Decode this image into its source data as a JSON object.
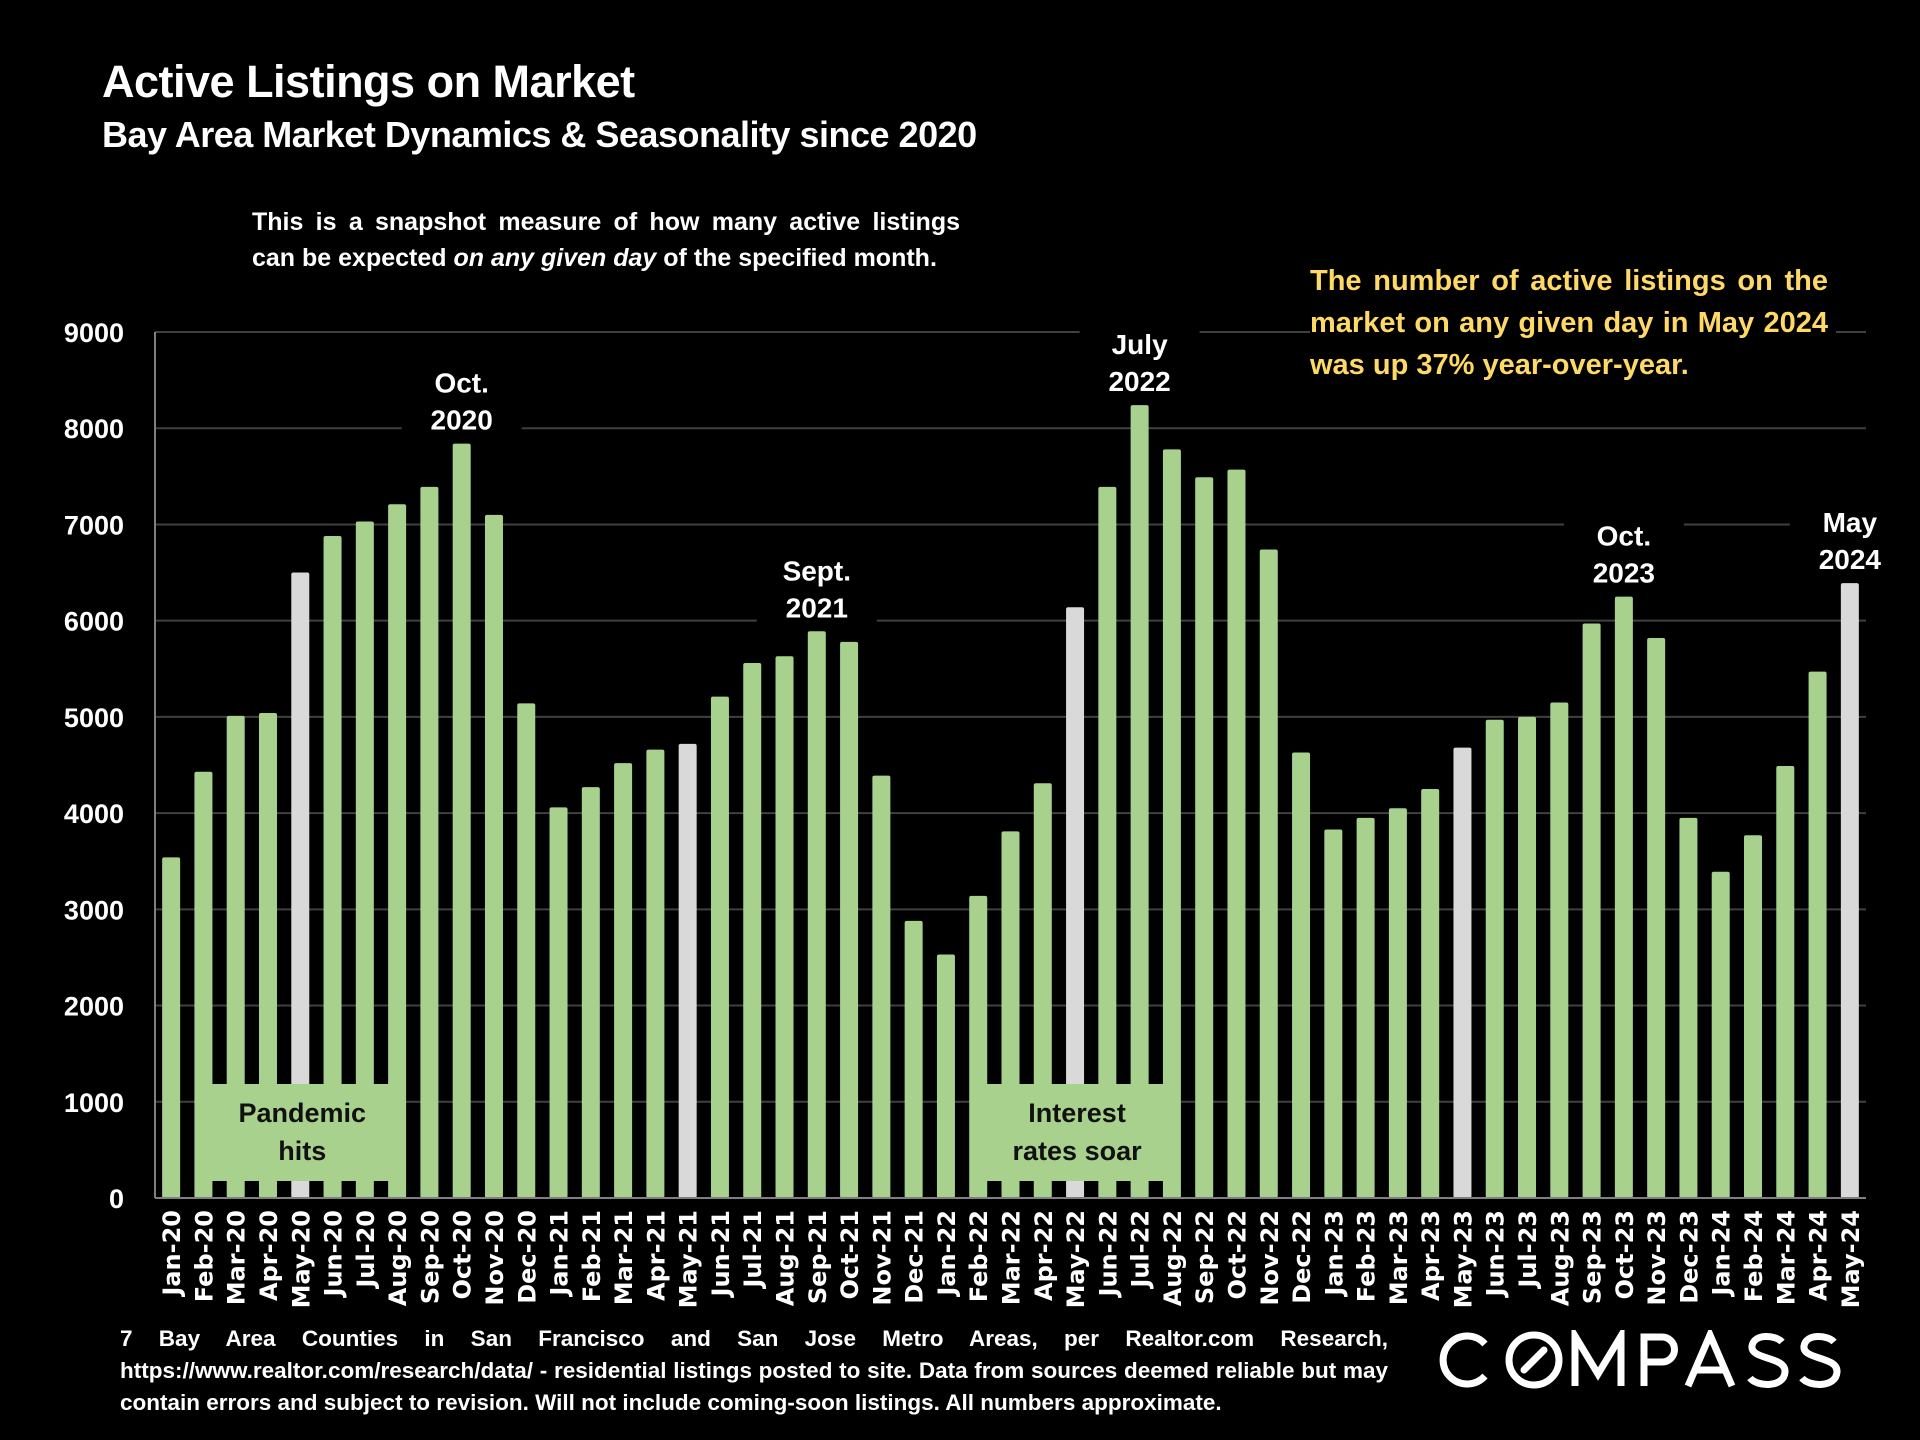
{
  "header": {
    "title": "Active Listings on Market",
    "subtitle": "Bay Area Market Dynamics & Seasonality since 2020"
  },
  "note": {
    "part1": "This is a snapshot measure of how many active listings can be expected ",
    "emphasis": "on any given day",
    "part2": " of the specified month."
  },
  "callout": {
    "text": "The number of active listings on the market on any given day in May 2024 was up 37% year-over-year.",
    "color": "#FFD966"
  },
  "colors": {
    "bar_default": "#A9D18E",
    "bar_highlight": "#D9D9D9",
    "gridline": "#404040",
    "background": "#000000"
  },
  "chart_data": {
    "type": "bar",
    "title": "Active Listings on Market",
    "subtitle": "Bay Area Market Dynamics & Seasonality since 2020",
    "xlabel": "",
    "ylabel": "",
    "ylim": [
      0,
      9000
    ],
    "yticks": [
      0,
      1000,
      2000,
      3000,
      4000,
      5000,
      6000,
      7000,
      8000,
      9000
    ],
    "grid": true,
    "legend": "none",
    "categories": [
      "Jan-20",
      "Feb-20",
      "Mar-20",
      "Apr-20",
      "May-20",
      "Jun-20",
      "Jul-20",
      "Aug-20",
      "Sep-20",
      "Oct-20",
      "Nov-20",
      "Dec-20",
      "Jan-21",
      "Feb-21",
      "Mar-21",
      "Apr-21",
      "May-21",
      "Jun-21",
      "Jul-21",
      "Aug-21",
      "Sep-21",
      "Oct-21",
      "Nov-21",
      "Dec-21",
      "Jan-22",
      "Feb-22",
      "Mar-22",
      "Apr-22",
      "May-22",
      "Jun-22",
      "Jul-22",
      "Aug-22",
      "Sep-22",
      "Oct-22",
      "Nov-22",
      "Dec-22",
      "Jan-23",
      "Feb-23",
      "Mar-23",
      "Apr-23",
      "May-23",
      "Jun-23",
      "Jul-23",
      "Aug-23",
      "Sep-23",
      "Oct-23",
      "Nov-23",
      "Dec-23",
      "Jan-24",
      "Feb-24",
      "Mar-24",
      "Apr-24",
      "May-24"
    ],
    "values": [
      3540,
      4430,
      5010,
      5040,
      6500,
      6880,
      7030,
      7210,
      7390,
      7840,
      7100,
      5140,
      4060,
      4270,
      4520,
      4660,
      4720,
      5210,
      5560,
      5630,
      5890,
      5780,
      4390,
      2880,
      2530,
      3140,
      3810,
      4310,
      6140,
      7390,
      8240,
      7780,
      7490,
      7570,
      6740,
      4630,
      3830,
      3950,
      4050,
      4250,
      4680,
      4970,
      5000,
      5150,
      5970,
      6250,
      5820,
      3950,
      3390,
      3770,
      4490,
      5470,
      6390
    ],
    "highlighted": [
      "May-20",
      "May-21",
      "May-22",
      "May-23",
      "May-24"
    ],
    "annotations": [
      {
        "category": "Oct-20",
        "lines": [
          "Oct.",
          "2020"
        ]
      },
      {
        "category": "Sep-21",
        "lines": [
          "Sept.",
          "2021"
        ]
      },
      {
        "category": "Jul-22",
        "lines": [
          "July",
          "2022"
        ]
      },
      {
        "category": "Oct-23",
        "lines": [
          "Oct.",
          "2023"
        ]
      },
      {
        "category": "May-24",
        "lines": [
          "May",
          "2024"
        ]
      }
    ],
    "event_boxes": [
      {
        "near": "May-20",
        "lines": [
          "Pandemic",
          "hits"
        ]
      },
      {
        "near": "May-22",
        "lines": [
          "Interest",
          "rates soar"
        ]
      }
    ]
  },
  "footer": {
    "source": "7 Bay Area Counties in San Francisco and San Jose Metro Areas, per Realtor.com Research, https://www.realtor.com/research/data/ - residential listings posted to site.  Data from sources deemed reliable but may contain errors and subject to revision. Will not include coming-soon listings. All numbers approximate."
  },
  "brand": {
    "logo_text": "COMPASS"
  }
}
